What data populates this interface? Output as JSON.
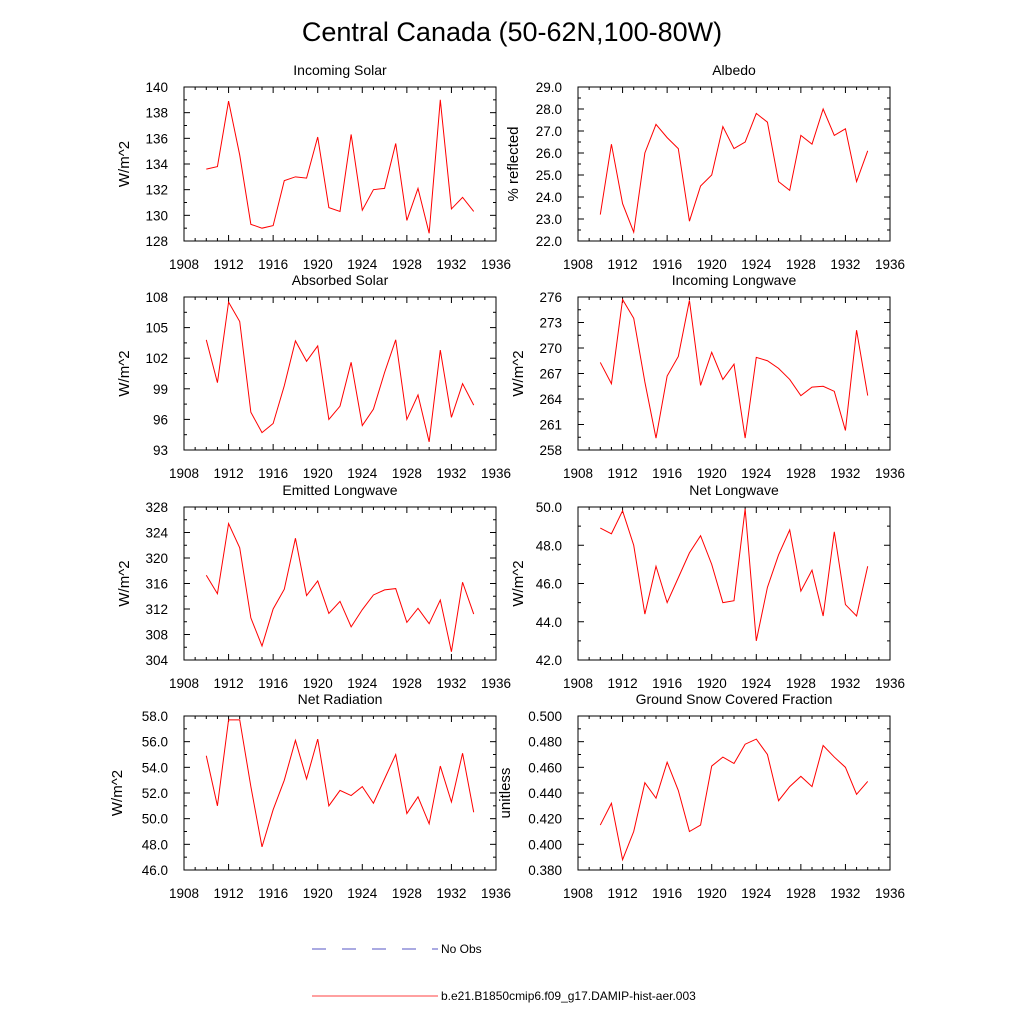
{
  "title": "Central Canada (50-62N,100-80W)",
  "colors": {
    "model_line": "#ff0000",
    "obs_line": "#1e1eb4",
    "axes": "#000000",
    "background": "#ffffff"
  },
  "legend": {
    "placement": "bottom-center",
    "entries": [
      {
        "label": "No Obs",
        "style": "dashed",
        "color": "#1e1eb4"
      },
      {
        "label": "b.e21.B1850cmip6.f09_g17.DAMIP-hist-aer.003",
        "style": "solid",
        "color": "#ff0000"
      }
    ]
  },
  "chart_data": [
    {
      "type": "line",
      "title": "Incoming Solar",
      "xlabel": "",
      "ylabel": "W/m^2",
      "xlim": [
        1908,
        1936
      ],
      "ylim": [
        128,
        140
      ],
      "xticks": [
        "1908",
        "1912",
        "1916",
        "1920",
        "1924",
        "1928",
        "1932",
        "1936"
      ],
      "yticks": [
        "128",
        "130",
        "132",
        "134",
        "136",
        "138",
        "140"
      ],
      "grid": false,
      "x": [
        1910,
        1911,
        1912,
        1913,
        1914,
        1915,
        1916,
        1917,
        1918,
        1919,
        1920,
        1921,
        1922,
        1923,
        1924,
        1925,
        1926,
        1927,
        1928,
        1929,
        1930,
        1931,
        1932,
        1933,
        1934
      ],
      "series": [
        {
          "values": [
            133.6,
            133.8,
            138.9,
            134.7,
            129.3,
            129.0,
            129.2,
            132.7,
            133.0,
            132.9,
            136.1,
            130.6,
            130.3,
            136.3,
            130.4,
            132.0,
            132.1,
            135.6,
            129.6,
            132.1,
            128.6,
            139.0,
            130.5,
            131.4,
            130.3
          ]
        }
      ]
    },
    {
      "type": "line",
      "title": "Albedo",
      "xlabel": "",
      "ylabel": "% reflected",
      "xlim": [
        1908,
        1936
      ],
      "ylim": [
        22.0,
        29.0
      ],
      "xticks": [
        "1908",
        "1912",
        "1916",
        "1920",
        "1924",
        "1928",
        "1932",
        "1936"
      ],
      "yticks": [
        "22.0",
        "23.0",
        "24.0",
        "25.0",
        "26.0",
        "27.0",
        "28.0",
        "29.0"
      ],
      "grid": false,
      "x": [
        1910,
        1911,
        1912,
        1913,
        1914,
        1915,
        1916,
        1917,
        1918,
        1919,
        1920,
        1921,
        1922,
        1923,
        1924,
        1925,
        1926,
        1927,
        1928,
        1929,
        1930,
        1931,
        1932,
        1933,
        1934
      ],
      "series": [
        {
          "values": [
            23.2,
            26.4,
            23.7,
            22.4,
            26.0,
            27.3,
            26.7,
            26.2,
            22.9,
            24.5,
            25.0,
            27.2,
            26.2,
            26.5,
            27.8,
            27.4,
            24.7,
            24.3,
            26.8,
            26.4,
            28.0,
            26.8,
            27.1,
            24.7,
            26.1
          ]
        }
      ]
    },
    {
      "type": "line",
      "title": "Absorbed Solar",
      "xlabel": "",
      "ylabel": "W/m^2",
      "xlim": [
        1908,
        1936
      ],
      "ylim": [
        93,
        108
      ],
      "xticks": [
        "1908",
        "1912",
        "1916",
        "1920",
        "1924",
        "1928",
        "1932",
        "1936"
      ],
      "yticks": [
        "93",
        "96",
        "99",
        "102",
        "105",
        "108"
      ],
      "grid": false,
      "x": [
        1910,
        1911,
        1912,
        1913,
        1914,
        1915,
        1916,
        1917,
        1918,
        1919,
        1920,
        1921,
        1922,
        1923,
        1924,
        1925,
        1926,
        1927,
        1928,
        1929,
        1930,
        1931,
        1932,
        1933,
        1934
      ],
      "series": [
        {
          "values": [
            103.8,
            99.6,
            107.5,
            105.6,
            96.7,
            94.7,
            95.6,
            99.3,
            103.7,
            101.7,
            103.2,
            96.0,
            97.3,
            101.6,
            95.4,
            97.0,
            100.6,
            103.8,
            96.0,
            98.4,
            93.8,
            102.8,
            96.2,
            99.5,
            97.4
          ]
        }
      ]
    },
    {
      "type": "line",
      "title": "Incoming Longwave",
      "xlabel": "",
      "ylabel": "W/m^2",
      "xlim": [
        1908,
        1936
      ],
      "ylim": [
        258,
        276
      ],
      "xticks": [
        "1908",
        "1912",
        "1916",
        "1920",
        "1924",
        "1928",
        "1932",
        "1936"
      ],
      "yticks": [
        "258",
        "261",
        "264",
        "267",
        "270",
        "273",
        "276"
      ],
      "grid": false,
      "x": [
        1910,
        1911,
        1912,
        1913,
        1914,
        1915,
        1916,
        1917,
        1918,
        1919,
        1920,
        1921,
        1922,
        1923,
        1924,
        1925,
        1926,
        1927,
        1928,
        1929,
        1930,
        1931,
        1932,
        1933,
        1934
      ],
      "series": [
        {
          "values": [
            268.3,
            265.8,
            275.7,
            273.5,
            266.0,
            259.4,
            266.7,
            269.0,
            275.6,
            265.6,
            269.5,
            266.3,
            268.1,
            259.4,
            268.9,
            268.5,
            267.6,
            266.3,
            264.4,
            265.4,
            265.5,
            264.9,
            260.3,
            272.1,
            264.4
          ]
        }
      ]
    },
    {
      "type": "line",
      "title": "Emitted Longwave",
      "xlabel": "",
      "ylabel": "W/m^2",
      "xlim": [
        1908,
        1936
      ],
      "ylim": [
        304,
        328
      ],
      "xticks": [
        "1908",
        "1912",
        "1916",
        "1920",
        "1924",
        "1928",
        "1932",
        "1936"
      ],
      "yticks": [
        "304",
        "308",
        "312",
        "316",
        "320",
        "324",
        "328"
      ],
      "grid": false,
      "x": [
        1910,
        1911,
        1912,
        1913,
        1914,
        1915,
        1916,
        1917,
        1918,
        1919,
        1920,
        1921,
        1922,
        1923,
        1924,
        1925,
        1926,
        1927,
        1928,
        1929,
        1930,
        1931,
        1932,
        1933,
        1934
      ],
      "series": [
        {
          "values": [
            317.3,
            314.4,
            325.4,
            321.6,
            310.6,
            306.2,
            312.0,
            315.1,
            323.1,
            314.1,
            316.4,
            311.3,
            313.2,
            309.2,
            311.9,
            314.2,
            315.0,
            315.2,
            309.9,
            312.1,
            309.7,
            313.4,
            305.3,
            316.2,
            311.2
          ]
        }
      ]
    },
    {
      "type": "line",
      "title": "Net Longwave",
      "xlabel": "",
      "ylabel": "W/m^2",
      "xlim": [
        1908,
        1936
      ],
      "ylim": [
        42.0,
        50.0
      ],
      "xticks": [
        "1908",
        "1912",
        "1916",
        "1920",
        "1924",
        "1928",
        "1932",
        "1936"
      ],
      "yticks": [
        "42.0",
        "44.0",
        "46.0",
        "48.0",
        "50.0"
      ],
      "grid": false,
      "x": [
        1910,
        1911,
        1912,
        1913,
        1914,
        1915,
        1916,
        1917,
        1918,
        1919,
        1920,
        1921,
        1922,
        1923,
        1924,
        1925,
        1926,
        1927,
        1928,
        1929,
        1930,
        1931,
        1932,
        1933,
        1934
      ],
      "series": [
        {
          "values": [
            48.9,
            48.6,
            49.8,
            48.0,
            44.4,
            46.9,
            45.0,
            46.3,
            47.6,
            48.5,
            47.0,
            45.0,
            45.1,
            49.9,
            43.0,
            45.8,
            47.5,
            48.8,
            45.6,
            46.7,
            44.3,
            48.7,
            44.9,
            44.3,
            46.9
          ]
        }
      ]
    },
    {
      "type": "line",
      "title": "Net Radiation",
      "xlabel": "",
      "ylabel": "W/m^2",
      "xlim": [
        1908,
        1936
      ],
      "ylim": [
        46.0,
        58.0
      ],
      "xticks": [
        "1908",
        "1912",
        "1916",
        "1920",
        "1924",
        "1928",
        "1932",
        "1936"
      ],
      "yticks": [
        "46.0",
        "48.0",
        "50.0",
        "52.0",
        "54.0",
        "56.0",
        "58.0"
      ],
      "grid": false,
      "x": [
        1910,
        1911,
        1912,
        1913,
        1914,
        1915,
        1916,
        1917,
        1918,
        1919,
        1920,
        1921,
        1922,
        1923,
        1924,
        1925,
        1926,
        1927,
        1928,
        1929,
        1930,
        1931,
        1932,
        1933,
        1934
      ],
      "series": [
        {
          "values": [
            54.9,
            51.0,
            57.7,
            57.7,
            52.5,
            47.8,
            50.7,
            53.0,
            56.1,
            53.1,
            56.2,
            51.0,
            52.2,
            51.8,
            52.5,
            51.2,
            53.1,
            55.0,
            50.4,
            51.7,
            49.6,
            54.1,
            51.3,
            55.1,
            50.5
          ]
        }
      ]
    },
    {
      "type": "line",
      "title": "Ground Snow Covered Fraction",
      "xlabel": "",
      "ylabel": "unitless",
      "xlim": [
        1908,
        1936
      ],
      "ylim": [
        0.38,
        0.5
      ],
      "xticks": [
        "1908",
        "1912",
        "1916",
        "1920",
        "1924",
        "1928",
        "1932",
        "1936"
      ],
      "yticks": [
        "0.380",
        "0.400",
        "0.420",
        "0.440",
        "0.460",
        "0.480",
        "0.500"
      ],
      "grid": false,
      "x": [
        1910,
        1911,
        1912,
        1913,
        1914,
        1915,
        1916,
        1917,
        1918,
        1919,
        1920,
        1921,
        1922,
        1923,
        1924,
        1925,
        1926,
        1927,
        1928,
        1929,
        1930,
        1931,
        1932,
        1933,
        1934
      ],
      "series": [
        {
          "values": [
            0.415,
            0.432,
            0.388,
            0.41,
            0.448,
            0.436,
            0.464,
            0.442,
            0.41,
            0.415,
            0.461,
            0.468,
            0.463,
            0.478,
            0.482,
            0.47,
            0.434,
            0.445,
            0.453,
            0.445,
            0.477,
            0.468,
            0.46,
            0.439,
            0.449
          ]
        }
      ]
    }
  ]
}
